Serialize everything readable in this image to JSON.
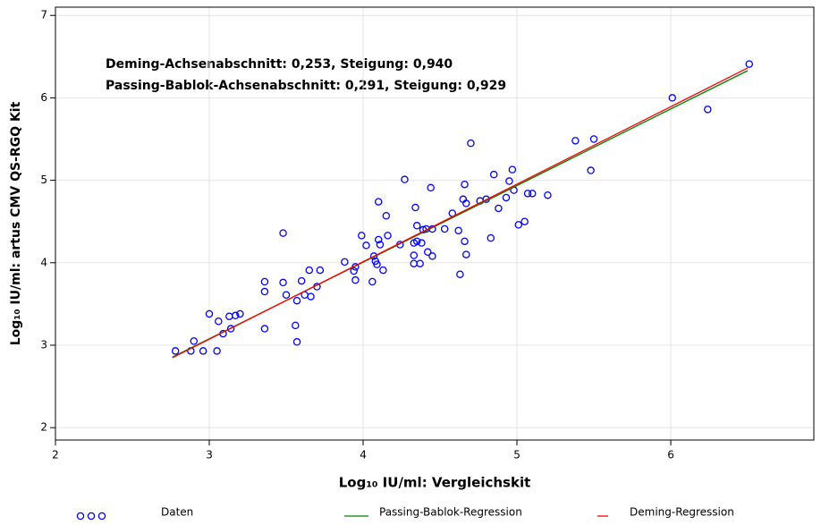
{
  "chart_data": {
    "type": "scatter",
    "annotations": [
      "Deming-Achsenabschnitt: 0,253, Steigung: 0,940",
      "Passing-Bablok-Achsenabschnitt: 0,291, Steigung: 0,929"
    ],
    "xlabel": "Log₁₀ IU/ml: Vergleichskit",
    "ylabel": "Log₁₀ IU/ml: artus CMV QS-RGQ Kit",
    "xlim": [
      2,
      6.93
    ],
    "ylim": [
      1.85,
      7.1
    ],
    "xticks": [
      2,
      3,
      4,
      5,
      6
    ],
    "yticks": [
      2,
      3,
      4,
      5,
      6,
      7
    ],
    "grid": true,
    "legend": "bottom",
    "series": [
      {
        "name": "Daten",
        "color": "#0000ff",
        "marker": "circle",
        "x": [
          2.78,
          2.88,
          2.9,
          2.96,
          3.0,
          3.05,
          3.06,
          3.09,
          3.13,
          3.14,
          3.17,
          3.2,
          3.36,
          3.36,
          3.36,
          3.48,
          3.48,
          3.5,
          3.56,
          3.57,
          3.57,
          3.6,
          3.62,
          3.65,
          3.66,
          3.7,
          3.72,
          3.88,
          3.94,
          3.95,
          3.95,
          3.99,
          4.02,
          4.06,
          4.07,
          4.08,
          4.09,
          4.1,
          4.1,
          4.11,
          4.13,
          4.15,
          4.16,
          4.24,
          4.27,
          4.33,
          4.33,
          4.33,
          4.34,
          4.35,
          4.35,
          4.37,
          4.38,
          4.39,
          4.41,
          4.42,
          4.44,
          4.45,
          4.45,
          4.53,
          4.58,
          4.62,
          4.63,
          4.65,
          4.66,
          4.66,
          4.67,
          4.67,
          4.7,
          4.76,
          4.8,
          4.83,
          4.85,
          4.88,
          4.93,
          4.95,
          4.97,
          4.98,
          5.01,
          5.05,
          5.07,
          5.1,
          5.2,
          5.38,
          5.48,
          5.5,
          6.01,
          6.24,
          6.51
        ],
        "y": [
          2.93,
          2.93,
          3.05,
          2.93,
          3.38,
          2.93,
          3.29,
          3.14,
          3.35,
          3.2,
          3.36,
          3.38,
          3.77,
          3.65,
          3.2,
          4.36,
          3.76,
          3.61,
          3.24,
          3.04,
          3.54,
          3.78,
          3.61,
          3.91,
          3.59,
          3.71,
          3.91,
          4.01,
          3.9,
          3.79,
          3.95,
          4.33,
          4.21,
          3.77,
          4.08,
          4.02,
          3.98,
          4.28,
          4.74,
          4.22,
          3.91,
          4.57,
          4.33,
          4.22,
          5.01,
          4.24,
          3.99,
          4.09,
          4.67,
          4.45,
          4.26,
          3.99,
          4.24,
          4.4,
          4.41,
          4.13,
          4.91,
          4.08,
          4.41,
          4.41,
          4.6,
          4.39,
          3.86,
          4.77,
          4.95,
          4.26,
          4.72,
          4.1,
          5.45,
          4.75,
          4.77,
          4.3,
          5.07,
          4.66,
          4.79,
          4.99,
          5.13,
          4.88,
          4.46,
          4.5,
          4.84,
          4.84,
          4.82,
          5.48,
          5.12,
          5.5,
          6.0,
          5.86,
          6.41
        ]
      },
      {
        "name": "Passing-Bablok-Regression",
        "color": "#008000",
        "x": [
          2.76,
          6.5
        ],
        "y": [
          2.855,
          6.33
        ]
      },
      {
        "name": "Deming-Regression",
        "color": "#ff0000",
        "x": [
          2.76,
          6.5
        ],
        "y": [
          2.847,
          6.363
        ]
      }
    ]
  }
}
